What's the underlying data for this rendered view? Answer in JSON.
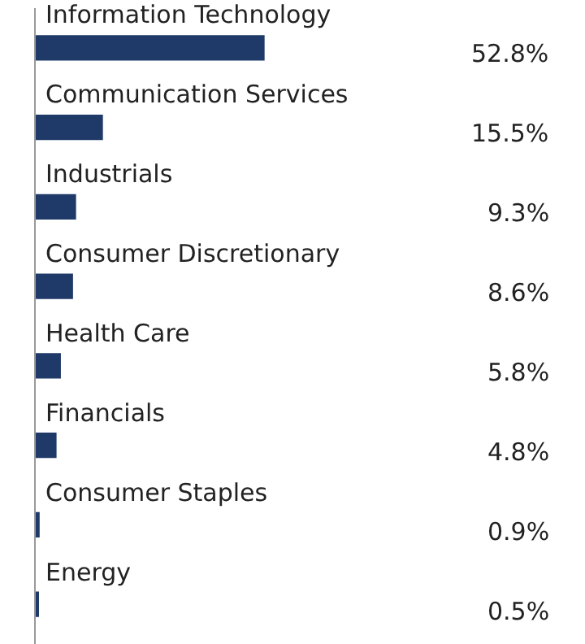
{
  "chart_data": {
    "type": "bar",
    "orientation": "horizontal",
    "categories": [
      "Information Technology",
      "Communication Services",
      "Industrials",
      "Consumer Discretionary",
      "Health Care",
      "Financials",
      "Consumer Staples",
      "Energy"
    ],
    "values": [
      52.8,
      15.5,
      9.3,
      8.6,
      5.8,
      4.8,
      0.9,
      0.5
    ],
    "value_labels": [
      "52.8%",
      "15.5%",
      "9.3%",
      "8.6%",
      "5.8%",
      "4.8%",
      "0.9%",
      "0.5%"
    ],
    "color": "#1f3a68"
  }
}
